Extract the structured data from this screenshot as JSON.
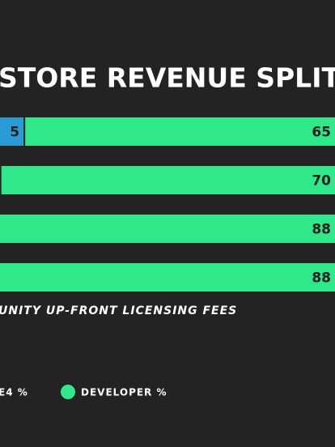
{
  "chart_data": {
    "type": "stacked-barh",
    "title": "S STORE REVENUE SPLIT",
    "note": "UNITY UP-FRONT LICENSING FEES",
    "categories": [
      null,
      null,
      null,
      null
    ],
    "series": [
      {
        "name": "E4 %",
        "color": "#2b9bd6",
        "values": [
          5,
          null,
          null,
          null
        ]
      },
      {
        "name": "DEVELOPER %",
        "color": "#2ee88a",
        "values": [
          65,
          70,
          88,
          88
        ]
      }
    ]
  }
}
